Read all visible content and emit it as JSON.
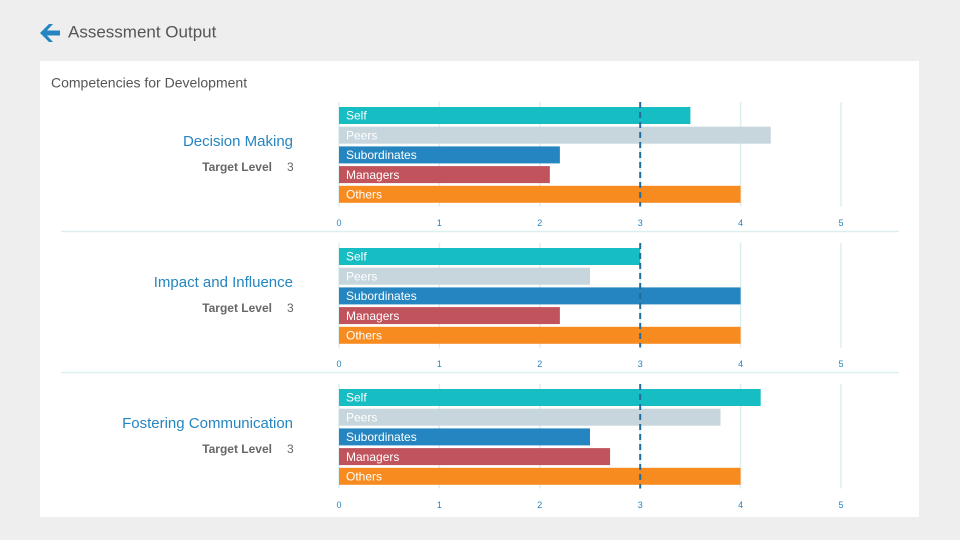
{
  "header": {
    "title": "Assessment Output"
  },
  "panel": {
    "title": "Competencies for Development"
  },
  "chart_data": [
    {
      "type": "bar",
      "orientation": "horizontal",
      "title": "Decision Making",
      "target_label": "Target Level",
      "target_value": 3,
      "categories": [
        "Self",
        "Peers",
        "Subordinates",
        "Managers",
        "Others"
      ],
      "values": [
        3.5,
        4.3,
        2.2,
        2.1,
        4
      ],
      "colors": [
        "#16bec4",
        "#c7d5dd",
        "#2585c0",
        "#c1535c",
        "#f78b1f"
      ],
      "xlim": [
        0,
        5
      ],
      "xticks": [
        0,
        1,
        2,
        3,
        4,
        5
      ],
      "grid": true
    },
    {
      "type": "bar",
      "orientation": "horizontal",
      "title": "Impact and Influence",
      "target_label": "Target Level",
      "target_value": 3,
      "categories": [
        "Self",
        "Peers",
        "Subordinates",
        "Managers",
        "Others"
      ],
      "values": [
        3,
        2.5,
        4,
        2.2,
        4
      ],
      "colors": [
        "#16bec4",
        "#c7d5dd",
        "#2585c0",
        "#c1535c",
        "#f78b1f"
      ],
      "xlim": [
        0,
        5
      ],
      "xticks": [
        0,
        1,
        2,
        3,
        4,
        5
      ],
      "grid": true
    },
    {
      "type": "bar",
      "orientation": "horizontal",
      "title": "Fostering Communication",
      "target_label": "Target Level",
      "target_value": 3,
      "categories": [
        "Self",
        "Peers",
        "Subordinates",
        "Managers",
        "Others"
      ],
      "values": [
        4.2,
        3.8,
        2.5,
        2.7,
        4
      ],
      "colors": [
        "#16bec4",
        "#c7d5dd",
        "#2585c0",
        "#c1535c",
        "#f78b1f"
      ],
      "xlim": [
        0,
        5
      ],
      "xticks": [
        0,
        1,
        2,
        3,
        4,
        5
      ],
      "grid": true
    }
  ]
}
